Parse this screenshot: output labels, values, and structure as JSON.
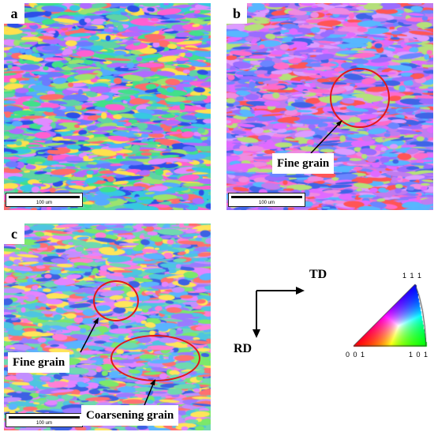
{
  "panels": [
    {
      "id": "a",
      "letter": "a",
      "scale_text": "100 um"
    },
    {
      "id": "b",
      "letter": "b",
      "scale_text": "100 um",
      "callouts": [
        "Fine grain"
      ]
    },
    {
      "id": "c",
      "letter": "c",
      "scale_text": "100 um",
      "callouts": [
        "Fine grain",
        "Coarsening grain"
      ]
    }
  ],
  "axes": {
    "horizontal": "TD",
    "vertical": "RD"
  },
  "ipf_legend": {
    "top": "1 1 1",
    "bottom_left": "0 0 1",
    "bottom_right": "1 0 1"
  }
}
